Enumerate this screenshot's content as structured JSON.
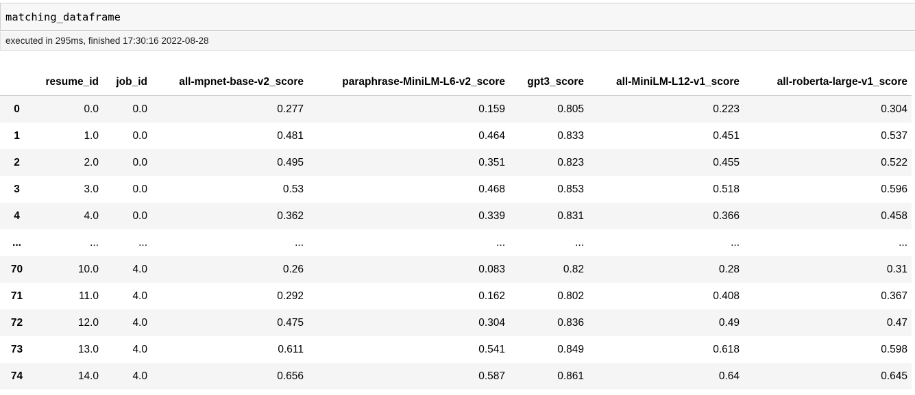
{
  "cell": {
    "code": "matching_dataframe",
    "execution_info": "executed in 295ms, finished 17:30:16 2022-08-28"
  },
  "table": {
    "columns": [
      "resume_id",
      "job_id",
      "all-mpnet-base-v2_score",
      "paraphrase-MiniLM-L6-v2_score",
      "gpt3_score",
      "all-MiniLM-L12-v1_score",
      "all-roberta-large-v1_score"
    ],
    "rows": [
      {
        "index": "0",
        "cells": [
          "0.0",
          "0.0",
          "0.277",
          "0.159",
          "0.805",
          "0.223",
          "0.304"
        ]
      },
      {
        "index": "1",
        "cells": [
          "1.0",
          "0.0",
          "0.481",
          "0.464",
          "0.833",
          "0.451",
          "0.537"
        ]
      },
      {
        "index": "2",
        "cells": [
          "2.0",
          "0.0",
          "0.495",
          "0.351",
          "0.823",
          "0.455",
          "0.522"
        ]
      },
      {
        "index": "3",
        "cells": [
          "3.0",
          "0.0",
          "0.53",
          "0.468",
          "0.853",
          "0.518",
          "0.596"
        ]
      },
      {
        "index": "4",
        "cells": [
          "4.0",
          "0.0",
          "0.362",
          "0.339",
          "0.831",
          "0.366",
          "0.458"
        ]
      },
      {
        "index": "...",
        "cells": [
          "...",
          "...",
          "...",
          "...",
          "...",
          "...",
          "..."
        ]
      },
      {
        "index": "70",
        "cells": [
          "10.0",
          "4.0",
          "0.26",
          "0.083",
          "0.82",
          "0.28",
          "0.31"
        ]
      },
      {
        "index": "71",
        "cells": [
          "11.0",
          "4.0",
          "0.292",
          "0.162",
          "0.802",
          "0.408",
          "0.367"
        ]
      },
      {
        "index": "72",
        "cells": [
          "12.0",
          "4.0",
          "0.475",
          "0.304",
          "0.836",
          "0.49",
          "0.47"
        ]
      },
      {
        "index": "73",
        "cells": [
          "13.0",
          "4.0",
          "0.611",
          "0.541",
          "0.849",
          "0.618",
          "0.598"
        ]
      },
      {
        "index": "74",
        "cells": [
          "14.0",
          "4.0",
          "0.656",
          "0.587",
          "0.861",
          "0.64",
          "0.645"
        ]
      }
    ]
  }
}
